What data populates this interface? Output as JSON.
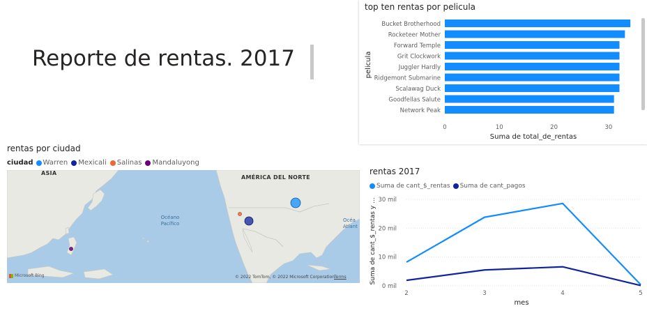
{
  "report": {
    "title": "Reporte de rentas. 2017"
  },
  "bar_visual": {
    "title": "top ten rentas por pelicula",
    "color": "#118DFF"
  },
  "map_visual": {
    "title": "rentas por ciudad",
    "legend_heading": "ciudad",
    "legend": [
      {
        "name": "Warren",
        "color": "#118DFF"
      },
      {
        "name": "Mexicali",
        "color": "#12239E"
      },
      {
        "name": "Salinas",
        "color": "#E66C37"
      },
      {
        "name": "Mandaluyong",
        "color": "#6B007B"
      }
    ],
    "labels": {
      "asia": "ASIA",
      "north_america": "AMÉRICA DEL NORTE",
      "pacific_line1": "Océano",
      "pacific_line2": "Pacífico",
      "atlantic_line1": "Océa",
      "atlantic_line2": "Atlant"
    },
    "copyright": "© 2022 TomTom, © 2022 Microsoft Corporation",
    "terms": "Terms",
    "logo": "Microsoft Bing"
  },
  "line_visual": {
    "title": "rentas 2017",
    "legend": [
      {
        "name": "Suma de cant_$_rentas",
        "color": "#118DFF"
      },
      {
        "name": "Suma de cant_pagos",
        "color": "#12239E"
      }
    ]
  },
  "chart_data": [
    {
      "type": "bar",
      "orientation": "horizontal",
      "title": "top ten rentas por pelicula",
      "xlabel": "Suma de total_de_rentas",
      "ylabel": "pelicula",
      "categories": [
        "Bucket Brotherhood",
        "Rocketeer Mother",
        "Forward Temple",
        "Grit Clockwork",
        "Juggler Hardly",
        "Ridgemont Submarine",
        "Scalawag Duck",
        "Goodfellas Salute",
        "Network Peak"
      ],
      "values": [
        34,
        33,
        32,
        32,
        32,
        32,
        32,
        31,
        31
      ],
      "xlim": [
        0,
        35
      ],
      "xticks": [
        "0",
        "10",
        "20",
        "30"
      ],
      "xtick_values": [
        0,
        10,
        20,
        30
      ]
    },
    {
      "type": "line",
      "title": "rentas 2017",
      "xlabel": "mes",
      "ylabel": "Suma de cant_$_rentas y ...",
      "x": [
        2,
        3,
        4,
        5
      ],
      "xticks": [
        "2",
        "3",
        "4",
        "5"
      ],
      "ylim": [
        0,
        30000
      ],
      "yticks": [
        "0 mil",
        "10 mil",
        "20 mil",
        "30 mil"
      ],
      "ytick_values": [
        0,
        10000,
        20000,
        30000
      ],
      "series": [
        {
          "name": "Suma de cant_$_rentas",
          "values": [
            8200,
            23800,
            28600,
            400
          ],
          "color": "#118DFF"
        },
        {
          "name": "Suma de cant_pagos",
          "values": [
            1900,
            5500,
            6600,
            100
          ],
          "color": "#12239E"
        }
      ]
    }
  ]
}
